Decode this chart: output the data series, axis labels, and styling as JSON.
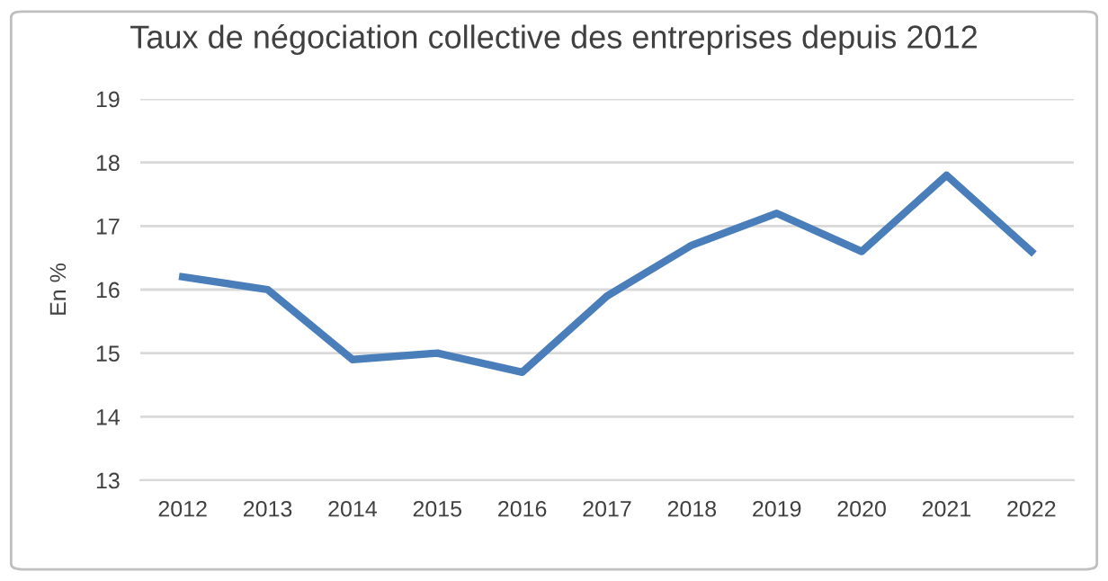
{
  "chart_data": {
    "type": "line",
    "title": "Taux de négociation collective des entreprises depuis 2012",
    "ylabel": "En %",
    "categories": [
      "2012",
      "2013",
      "2014",
      "2015",
      "2016",
      "2017",
      "2018",
      "2019",
      "2020",
      "2021",
      "2022"
    ],
    "series": [
      {
        "color": "#4a7ebb",
        "values": [
          16.2,
          16.0,
          14.9,
          15.0,
          14.7,
          15.9,
          16.7,
          17.2,
          16.6,
          17.8,
          16.6
        ]
      }
    ],
    "ylim": [
      13,
      19
    ],
    "yticks": [
      13,
      14,
      15,
      16,
      17,
      18,
      19
    ],
    "grid": "y",
    "marker": "none",
    "line_style": "solid"
  }
}
